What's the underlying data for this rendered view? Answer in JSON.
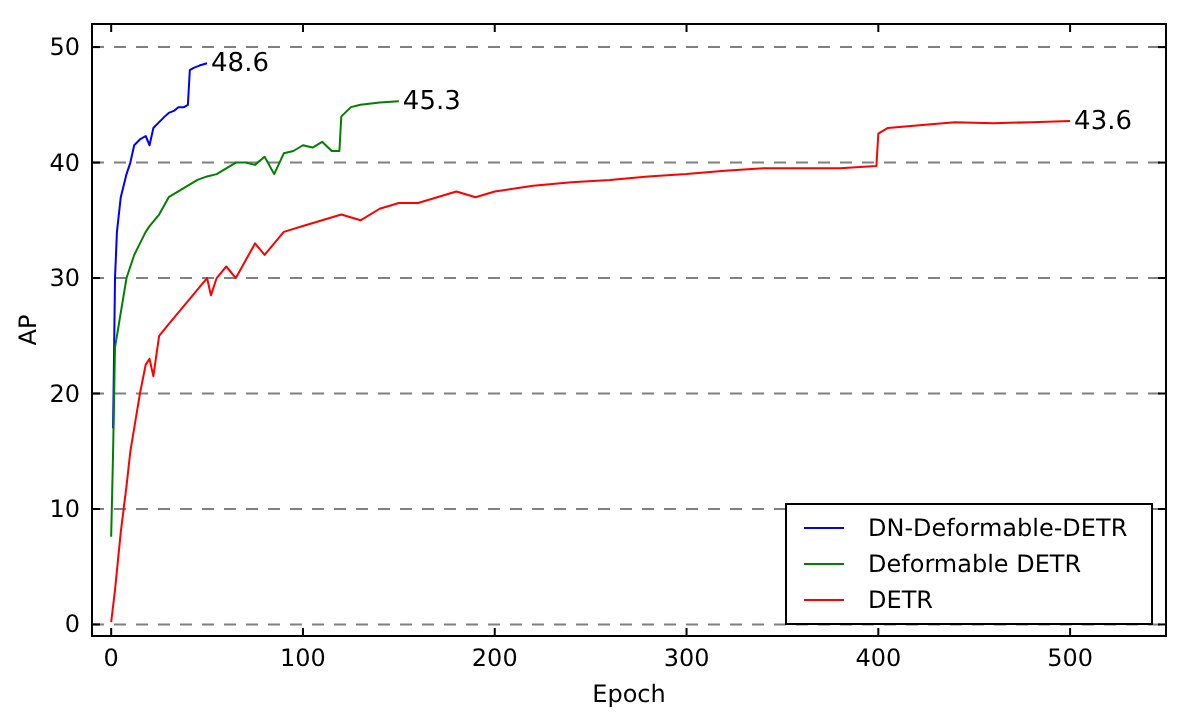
{
  "chart_data": {
    "type": "line",
    "xlabel": "Epoch",
    "ylabel": "AP",
    "xlim": [
      -10,
      550
    ],
    "ylim": [
      -1,
      52
    ],
    "xticks": [
      0,
      100,
      200,
      300,
      400,
      500
    ],
    "yticks": [
      0,
      10,
      20,
      30,
      40,
      50
    ],
    "grid": "y",
    "legend": "bottom right",
    "annotations": [
      {
        "text": "48.6",
        "x": 50,
        "y": 48.6
      },
      {
        "text": "45.3",
        "x": 150,
        "y": 45.3
      },
      {
        "text": "43.6",
        "x": 500,
        "y": 43.6
      }
    ],
    "series": [
      {
        "name": "DN-Deformable-DETR",
        "color": "#0000ff",
        "x": [
          1,
          2,
          3,
          5,
          8,
          10,
          12,
          15,
          18,
          20,
          22,
          25,
          28,
          30,
          33,
          35,
          38,
          40,
          41,
          43,
          46,
          50
        ],
        "values": [
          17,
          30,
          34,
          37,
          39,
          40,
          41.5,
          42,
          42.3,
          41.5,
          43,
          43.5,
          44,
          44.3,
          44.5,
          44.8,
          44.8,
          45,
          48,
          48.2,
          48.4,
          48.6
        ]
      },
      {
        "name": "Deformable DETR",
        "color": "#008000",
        "x": [
          0,
          1,
          2,
          4,
          6,
          8,
          10,
          12,
          15,
          18,
          20,
          25,
          30,
          35,
          40,
          45,
          50,
          55,
          60,
          65,
          70,
          75,
          80,
          85,
          90,
          95,
          100,
          105,
          110,
          115,
          119,
          120,
          125,
          130,
          140,
          150
        ],
        "values": [
          7.6,
          15,
          24,
          26,
          28,
          30,
          31,
          32,
          33,
          34,
          34.5,
          35.5,
          37,
          37.5,
          38,
          38.5,
          38.8,
          39,
          39.5,
          40,
          40,
          39.8,
          40.5,
          39,
          40.8,
          41,
          41.5,
          41.3,
          41.8,
          41,
          41,
          44,
          44.8,
          45,
          45.2,
          45.3
        ]
      },
      {
        "name": "DETR",
        "color": "#ff0000",
        "x": [
          0,
          2,
          5,
          8,
          10,
          12,
          15,
          18,
          20,
          22,
          25,
          30,
          35,
          40,
          45,
          50,
          52,
          55,
          60,
          65,
          70,
          75,
          80,
          85,
          90,
          100,
          110,
          120,
          130,
          140,
          150,
          160,
          170,
          180,
          190,
          200,
          220,
          240,
          260,
          280,
          300,
          320,
          340,
          360,
          380,
          399,
          400,
          405,
          420,
          440,
          460,
          480,
          500
        ],
        "values": [
          0.2,
          3,
          8,
          12,
          15,
          17,
          20,
          22.5,
          23,
          21.5,
          25,
          26,
          27,
          28,
          29,
          30,
          28.5,
          30,
          31,
          30,
          31.5,
          33,
          32,
          33,
          34,
          34.5,
          35,
          35.5,
          35,
          36,
          36.5,
          36.5,
          37,
          37.5,
          37,
          37.5,
          38,
          38.3,
          38.5,
          38.8,
          39,
          39.3,
          39.5,
          39.5,
          39.5,
          39.7,
          42.5,
          43,
          43.2,
          43.5,
          43.4,
          43.5,
          43.6
        ]
      }
    ]
  }
}
